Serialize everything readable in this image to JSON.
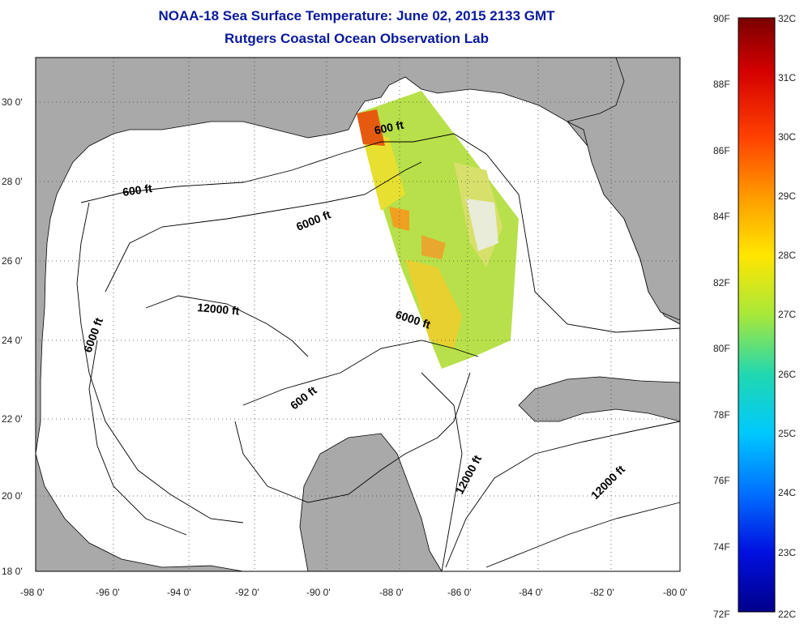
{
  "title": "NOAA-18 Sea Surface Temperature:  June 02, 2015 2133 GMT",
  "subtitle": "Rutgers Coastal Ocean Observation Lab",
  "map": {
    "lat_labels": [
      "30 0'",
      "28 0'",
      "26 0'",
      "24 0'",
      "22 0'",
      "20 0'",
      "18 0'"
    ],
    "lon_labels": [
      "-98 0'",
      "-96 0'",
      "-94 0'",
      "-92 0'",
      "-90 0'",
      "-88 0'",
      "-86 0'",
      "-84 0'",
      "-82 0'",
      "-80 0'"
    ],
    "lat_range": [
      18,
      31
    ],
    "lon_range": [
      -98,
      -80
    ],
    "grid": "dotted",
    "land_color": "#a9a9a9",
    "ocean_color": "#ffffff"
  },
  "contour_labels": [
    {
      "id": "c600-north",
      "text": "600 ft"
    },
    {
      "id": "c600-west",
      "text": "600 ft"
    },
    {
      "id": "c6000-north",
      "text": "6000 ft"
    },
    {
      "id": "c6000-west",
      "text": "6000 ft"
    },
    {
      "id": "c12000-center",
      "text": "12000 ft"
    },
    {
      "id": "c6000-east",
      "text": "6000 ft"
    },
    {
      "id": "c600-south",
      "text": "600 ft"
    },
    {
      "id": "c12000-yucatan",
      "text": "12000 ft"
    },
    {
      "id": "c12000-carib",
      "text": "12000 ft"
    }
  ],
  "colorbar": {
    "f_labels": [
      "90F",
      "88F",
      "86F",
      "84F",
      "82F",
      "80F",
      "78F",
      "76F",
      "74F",
      "72F"
    ],
    "c_labels": [
      "32C",
      "31C",
      "30C",
      "29C",
      "28C",
      "27C",
      "26C",
      "25C",
      "24C",
      "23C",
      "22C"
    ],
    "colors": [
      "#7a0000",
      "#d40000",
      "#ff4000",
      "#ff9a00",
      "#ffe600",
      "#a8e83a",
      "#20d8b0",
      "#00c8ff",
      "#0070ff",
      "#0010e0",
      "#00008a"
    ]
  }
}
